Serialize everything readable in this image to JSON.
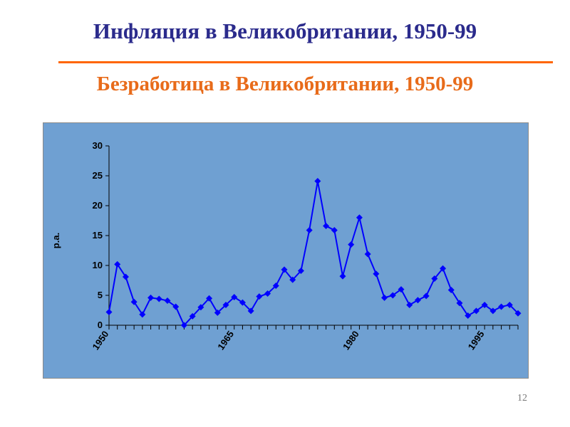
{
  "slide": {
    "title": "Инфляция в Великобритании, 1950-99",
    "subtitle": "Безработица в Великобритании, 1950-99",
    "number": "12",
    "title_color": "#2b2b8c",
    "subtitle_color": "#e86b1a",
    "rule_color": "#ff6600",
    "panel_color": "#6fa0d2"
  },
  "chart_data": {
    "type": "line",
    "title": "",
    "xlabel": "",
    "ylabel": "p.a.",
    "x": [
      1950,
      1951,
      1952,
      1953,
      1954,
      1955,
      1956,
      1957,
      1958,
      1959,
      1960,
      1961,
      1962,
      1963,
      1964,
      1965,
      1966,
      1967,
      1968,
      1969,
      1970,
      1971,
      1972,
      1973,
      1974,
      1975,
      1976,
      1977,
      1978,
      1979,
      1980,
      1981,
      1982,
      1983,
      1984,
      1985,
      1986,
      1987,
      1988,
      1989,
      1990,
      1991,
      1992,
      1993,
      1994,
      1995,
      1996,
      1997,
      1998,
      1999
    ],
    "x_tick_labels": [
      "1950",
      "1965",
      "1980",
      "1995"
    ],
    "x_tick_values": [
      1950,
      1965,
      1980,
      1995
    ],
    "ylim": [
      0,
      30
    ],
    "y_ticks": [
      0,
      5,
      10,
      15,
      20,
      25,
      30
    ],
    "grid": false,
    "legend": "none",
    "series": [
      {
        "name": "",
        "color": "#0000ff",
        "marker": "diamond",
        "values": [
          2.2,
          10.2,
          8.1,
          3.9,
          1.8,
          4.6,
          4.4,
          4.1,
          3.1,
          0.0,
          1.5,
          3.0,
          4.5,
          2.1,
          3.4,
          4.7,
          3.8,
          2.4,
          4.8,
          5.3,
          6.6,
          9.3,
          7.6,
          9.1,
          15.9,
          24.1,
          16.6,
          15.9,
          8.2,
          13.5,
          18.0,
          11.9,
          8.6,
          4.6,
          5.0,
          6.0,
          3.4,
          4.2,
          4.9,
          7.8,
          9.5,
          5.9,
          3.7,
          1.6,
          2.4,
          3.4,
          2.4,
          3.1,
          3.4,
          2.0
        ]
      }
    ]
  }
}
